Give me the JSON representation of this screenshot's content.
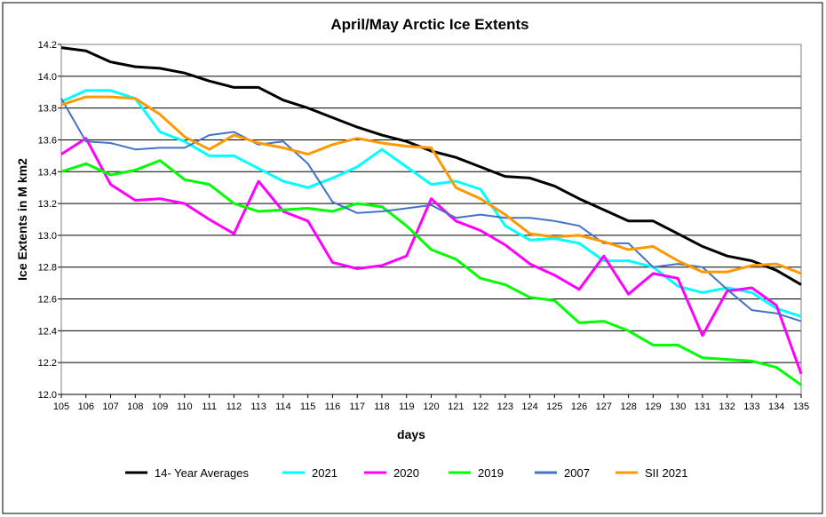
{
  "chart_data": {
    "type": "line",
    "title": "April/May Arctic Ice Extents",
    "xlabel": "days",
    "ylabel": "Ice Extents in M km2",
    "xlim": [
      105,
      135
    ],
    "ylim": [
      12.0,
      14.2
    ],
    "y_ticks": [
      "12.0",
      "12.2",
      "12.4",
      "12.6",
      "12.8",
      "13.0",
      "13.2",
      "13.4",
      "13.6",
      "13.8",
      "14.0",
      "14.2"
    ],
    "grid": "horizontal",
    "legend": "bottom",
    "x": [
      105,
      106,
      107,
      108,
      109,
      110,
      111,
      112,
      113,
      114,
      115,
      116,
      117,
      118,
      119,
      120,
      121,
      122,
      123,
      124,
      125,
      126,
      127,
      128,
      129,
      130,
      131,
      132,
      133,
      134,
      135
    ],
    "series": [
      {
        "name": "14- Year Averages",
        "color": "#000000",
        "values": [
          14.18,
          14.16,
          14.09,
          14.06,
          14.05,
          14.02,
          13.97,
          13.93,
          13.93,
          13.85,
          13.8,
          13.74,
          13.68,
          13.63,
          13.59,
          13.53,
          13.49,
          13.43,
          13.37,
          13.36,
          13.31,
          13.23,
          13.16,
          13.09,
          13.09,
          13.01,
          12.93,
          12.87,
          12.84,
          12.78,
          12.69
        ]
      },
      {
        "name": "2021",
        "color": "#00FFFF",
        "values": [
          13.84,
          13.91,
          13.91,
          13.86,
          13.65,
          13.59,
          13.5,
          13.5,
          13.42,
          13.34,
          13.3,
          13.36,
          13.43,
          13.54,
          13.43,
          13.32,
          13.34,
          13.29,
          13.06,
          12.97,
          12.98,
          12.95,
          12.84,
          12.84,
          12.8,
          12.68,
          12.64,
          12.67,
          12.64,
          12.54,
          12.49
        ]
      },
      {
        "name": "2020",
        "color": "#FF00FF",
        "values": [
          13.51,
          13.61,
          13.32,
          13.22,
          13.23,
          13.2,
          13.1,
          13.01,
          13.34,
          13.15,
          13.09,
          12.83,
          12.79,
          12.81,
          12.87,
          13.23,
          13.09,
          13.03,
          12.94,
          12.82,
          12.75,
          12.66,
          12.87,
          12.63,
          12.76,
          12.73,
          12.37,
          12.65,
          12.67,
          12.56,
          12.13
        ]
      },
      {
        "name": "2019",
        "color": "#00FF00",
        "values": [
          13.4,
          13.45,
          13.38,
          13.41,
          13.47,
          13.35,
          13.32,
          13.2,
          13.15,
          13.16,
          13.17,
          13.15,
          13.2,
          13.18,
          13.06,
          12.91,
          12.85,
          12.73,
          12.69,
          12.61,
          12.59,
          12.45,
          12.46,
          12.4,
          12.31,
          12.31,
          12.23,
          12.22,
          12.21,
          12.17,
          12.06
        ]
      },
      {
        "name": "2007",
        "color": "#4472C4",
        "values": [
          13.86,
          13.59,
          13.58,
          13.54,
          13.55,
          13.55,
          13.63,
          13.65,
          13.57,
          13.59,
          13.45,
          13.21,
          13.14,
          13.15,
          13.17,
          13.19,
          13.11,
          13.13,
          13.11,
          13.11,
          13.09,
          13.06,
          12.95,
          12.95,
          12.8,
          12.82,
          12.8,
          12.66,
          12.53,
          12.51,
          12.46
        ]
      },
      {
        "name": "SII 2021",
        "color": "#FF9900",
        "values": [
          13.82,
          13.87,
          13.87,
          13.86,
          13.76,
          13.62,
          13.54,
          13.63,
          13.58,
          13.55,
          13.51,
          13.57,
          13.61,
          13.58,
          13.56,
          13.55,
          13.3,
          13.23,
          13.13,
          13.01,
          12.99,
          13.0,
          12.96,
          12.91,
          12.93,
          12.84,
          12.77,
          12.77,
          12.81,
          12.82,
          12.76
        ]
      }
    ]
  }
}
